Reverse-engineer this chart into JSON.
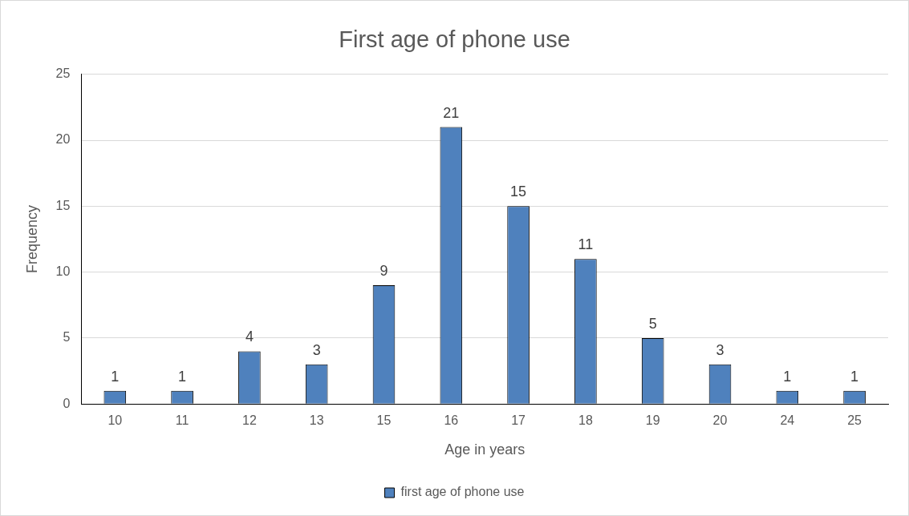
{
  "chart_data": {
    "type": "bar",
    "title": "First age of phone use",
    "xlabel": "Age in years",
    "ylabel": "Frequency",
    "categories": [
      "10",
      "11",
      "12",
      "13",
      "15",
      "16",
      "17",
      "18",
      "19",
      "20",
      "24",
      "25"
    ],
    "series": [
      {
        "name": "first age of phone use",
        "color": "#4f81bd",
        "values": [
          1,
          1,
          4,
          3,
          9,
          21,
          15,
          11,
          5,
          3,
          1,
          1
        ]
      }
    ],
    "ylim": [
      0,
      25
    ],
    "yticks": [
      0,
      5,
      10,
      15,
      20,
      25
    ],
    "grid": "y",
    "legend": "bottom",
    "data_labels": true
  }
}
